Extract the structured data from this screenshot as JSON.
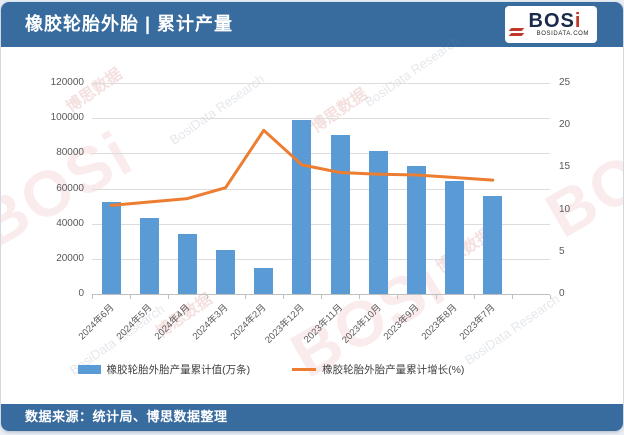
{
  "header": {
    "title": "橡胶轮胎外胎 | 累计产量",
    "logo_text_main": "BOS",
    "logo_text_i": "i",
    "logo_caption": "BOSIDATA.COM"
  },
  "footer": {
    "source": "数据来源：统计局、博思数据整理"
  },
  "colors": {
    "header_bg": "#386B9E",
    "footer_bg": "#386B9E",
    "bar": "#5B9BD5",
    "line": "#ED7D31",
    "grid": "#DCDCDC",
    "axis_text": "#595959"
  },
  "watermark": {
    "cn": "博思数据",
    "en": "BosiData Research",
    "logo": "BOSi"
  },
  "chart_data": {
    "type": "bar",
    "title": "橡胶轮胎外胎 | 累计产量",
    "categories": [
      "2024年6月",
      "2024年5月",
      "2024年4月",
      "2024年3月",
      "2024年2月",
      "2023年12月",
      "2023年11月",
      "2023年10月",
      "2023年9月",
      "2023年8月",
      "2023年7月"
    ],
    "series": [
      {
        "name": "橡胶轮胎外胎产量累计值(万条)",
        "type": "bar",
        "axis": "left",
        "color": "#5B9BD5",
        "values": [
          52500,
          43000,
          34000,
          25300,
          15000,
          98800,
          90200,
          81500,
          73000,
          64000,
          55800
        ]
      },
      {
        "name": "橡胶轮胎外胎产量累计增长(%)",
        "type": "line",
        "axis": "right",
        "color": "#ED7D31",
        "values": [
          10.5,
          10.9,
          11.3,
          12.6,
          19.4,
          15.3,
          14.4,
          14.2,
          14.1,
          13.8,
          13.5
        ]
      }
    ],
    "left_axis": {
      "min": 0,
      "max": 120000,
      "step": 20000,
      "tick_labels": [
        "0",
        "20000",
        "40000",
        "60000",
        "80000",
        "100000",
        "120000"
      ]
    },
    "right_axis": {
      "min": 0,
      "max": 25,
      "step": 5,
      "tick_labels": [
        "0",
        "5",
        "10",
        "15",
        "20",
        "25"
      ]
    },
    "grid": true,
    "legend_position": "bottom",
    "xlabel": "",
    "ylabel_left": "万条",
    "ylabel_right": "%"
  }
}
